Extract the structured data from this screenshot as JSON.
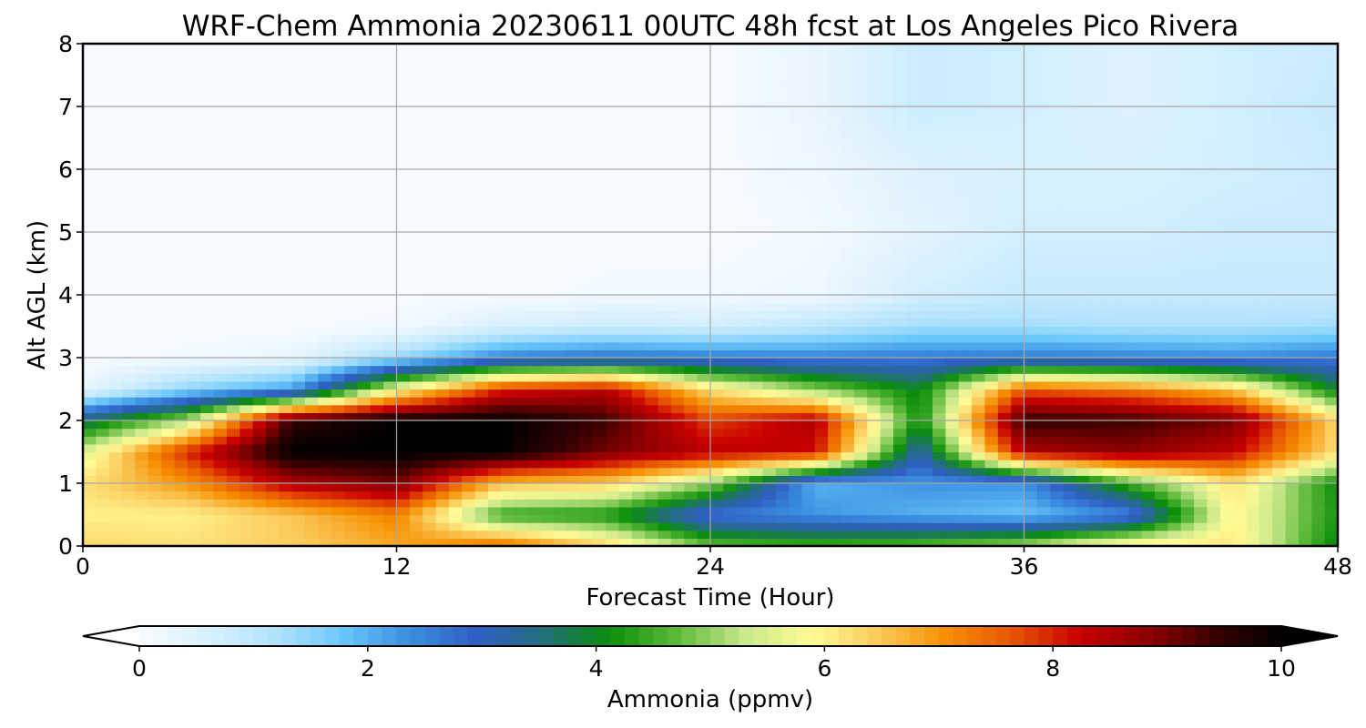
{
  "chart_data": {
    "type": "heatmap",
    "title": "WRF-Chem Ammonia  20230611 00UTC 48h fcst at Los Angeles Pico Rivera",
    "xlabel": "Forecast Time (Hour)",
    "ylabel": "Alt AGL (km)",
    "xlim": [
      0,
      48
    ],
    "ylim": [
      0,
      8
    ],
    "xticks": [
      "0",
      "12",
      "24",
      "36",
      "48"
    ],
    "yticks": [
      "0",
      "1",
      "2",
      "3",
      "4",
      "5",
      "6",
      "7",
      "8"
    ],
    "grid": true,
    "colorbar": {
      "label": "Ammonia  (ppmv)",
      "range": [
        0,
        10
      ],
      "ticks": [
        "0",
        "2",
        "4",
        "6",
        "8",
        "10"
      ],
      "extend": "both",
      "colors": [
        "#f7fbff",
        "#d9f1fe",
        "#b2e3fd",
        "#6cc8fb",
        "#3a8fe0",
        "#2f5fc4",
        "#236e7e",
        "#0b8e0b",
        "#5db93a",
        "#c8e88a",
        "#fffb96",
        "#fbc95a",
        "#f68f00",
        "#e85500",
        "#c80000",
        "#8e0000",
        "#3a0000",
        "#000000"
      ],
      "under_color": "#ffffff",
      "over_color": "#000000"
    },
    "x": [
      0,
      4,
      8,
      12,
      16,
      20,
      24,
      28,
      32,
      36,
      40,
      44,
      48
    ],
    "y": [
      0,
      0.5,
      1,
      1.5,
      2,
      2.5,
      3,
      3.5,
      4,
      5,
      6,
      7,
      8
    ],
    "z": [
      [
        6.3,
        6.2,
        6.4,
        6.8,
        7.5,
        6.4,
        4.8,
        4.6,
        4.8,
        5.2,
        6.2,
        6.1,
        4.0
      ],
      [
        6.0,
        6.0,
        6.5,
        7.2,
        4.4,
        4.2,
        2.6,
        2.3,
        2.0,
        1.8,
        2.4,
        6.0,
        4.2
      ],
      [
        6.2,
        7.0,
        8.5,
        9.0,
        6.6,
        6.4,
        5.0,
        2.0,
        2.3,
        2.3,
        4.5,
        6.2,
        4.1
      ],
      [
        5.5,
        8.0,
        10.0,
        10.0,
        10.0,
        9.0,
        8.4,
        8.2,
        3.1,
        8.5,
        8.8,
        8.3,
        6.2
      ],
      [
        3.6,
        5.2,
        9.5,
        10.0,
        10.0,
        9.4,
        7.8,
        8.5,
        4.1,
        9.5,
        9.4,
        9.0,
        6.3
      ],
      [
        0.3,
        1.5,
        2.2,
        5.8,
        8.0,
        8.4,
        6.2,
        5.0,
        4.0,
        7.6,
        7.3,
        6.5,
        3.9
      ],
      [
        0.0,
        0.1,
        0.3,
        1.4,
        2.5,
        2.7,
        2.6,
        2.5,
        2.6,
        2.6,
        2.5,
        2.4,
        2.6
      ],
      [
        0.0,
        0.0,
        0.0,
        0.1,
        0.6,
        0.8,
        0.7,
        1.0,
        1.3,
        1.3,
        1.2,
        1.2,
        1.3
      ],
      [
        0.0,
        0.0,
        0.0,
        0.0,
        0.0,
        0.1,
        0.1,
        0.2,
        0.7,
        0.9,
        0.9,
        0.9,
        0.9
      ],
      [
        0.0,
        0.0,
        0.0,
        0.0,
        0.0,
        0.0,
        0.0,
        0.1,
        0.4,
        0.7,
        0.7,
        0.8,
        0.8
      ],
      [
        0.0,
        0.0,
        0.0,
        0.0,
        0.0,
        0.0,
        0.0,
        0.2,
        0.5,
        0.6,
        0.6,
        0.7,
        0.8
      ],
      [
        0.0,
        0.0,
        0.0,
        0.0,
        0.0,
        0.0,
        0.0,
        0.3,
        0.8,
        0.7,
        0.5,
        0.7,
        0.9
      ],
      [
        0.0,
        0.0,
        0.0,
        0.0,
        0.0,
        0.0,
        0.0,
        0.3,
        0.8,
        0.7,
        0.5,
        0.7,
        0.8
      ]
    ]
  }
}
